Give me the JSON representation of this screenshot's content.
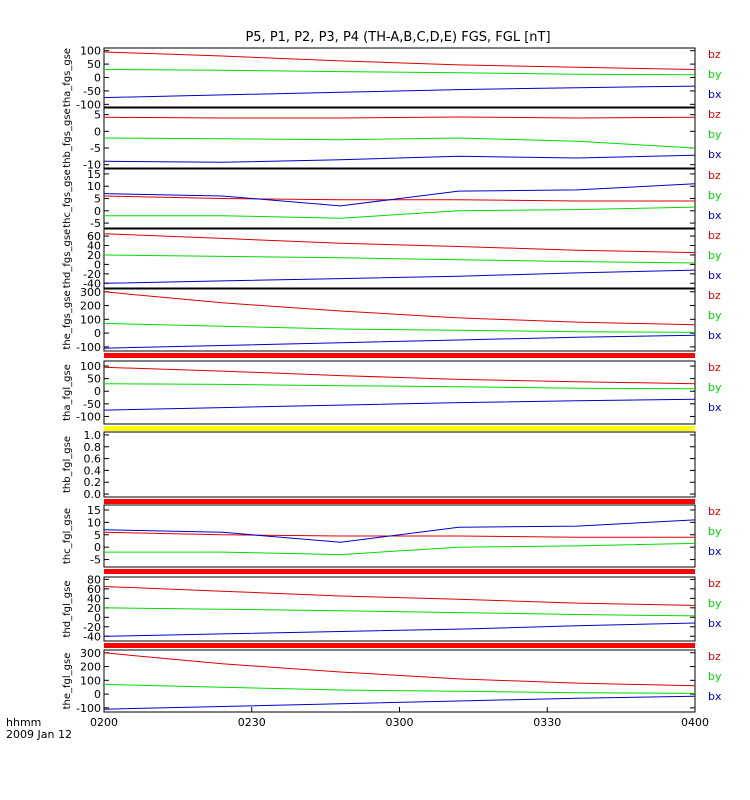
{
  "title": "P5, P1, P2, P3, P4 (TH-A,B,C,D,E) FGS, FGL [nT]",
  "footer": {
    "time_label": "hhmm",
    "date_label": "2009 Jan 12"
  },
  "colors": {
    "bz": "#e00000",
    "by": "#00dd00",
    "bx": "#0000cc",
    "bar_red": "#ff0000",
    "bar_yellow": "#ffff00",
    "axis": "#000000"
  },
  "chart_data": {
    "type": "line",
    "x_axis": {
      "ticks": [
        "0200",
        "0230",
        "0300",
        "0330",
        "0400"
      ]
    },
    "panels": [
      {
        "ylabel": "tha_fgs_gse",
        "ylim": [
          -110,
          110
        ],
        "yticks": [
          "100",
          "50",
          "0",
          "-50",
          "-100"
        ],
        "bar": null,
        "series": [
          {
            "name": "bz",
            "values": [
              95,
              80,
              62,
              47,
              38,
              30
            ]
          },
          {
            "name": "by",
            "values": [
              30,
              27,
              22,
              18,
              12,
              10
            ]
          },
          {
            "name": "bx",
            "values": [
              -75,
              -65,
              -55,
              -45,
              -38,
              -32
            ]
          }
        ]
      },
      {
        "ylabel": "thb_fgs_gse",
        "ylim": [
          -11,
          7
        ],
        "yticks": [
          "5",
          "0",
          "-5",
          "-10"
        ],
        "bar": null,
        "series": [
          {
            "name": "bz",
            "values": [
              4.2,
              4.0,
              4.0,
              4.3,
              4.0,
              4.2
            ]
          },
          {
            "name": "by",
            "values": [
              -2.0,
              -2.2,
              -2.5,
              -2.0,
              -3.0,
              -5.0
            ]
          },
          {
            "name": "bx",
            "values": [
              -9.0,
              -9.3,
              -8.5,
              -7.5,
              -8.0,
              -7.2
            ]
          }
        ]
      },
      {
        "ylabel": "thc_fgs_gse",
        "ylim": [
          -7,
          17
        ],
        "yticks": [
          "15",
          "10",
          "5",
          "0",
          "-5"
        ],
        "bar": null,
        "series": [
          {
            "name": "bz",
            "values": [
              6,
              5,
              4.5,
              4.5,
              4,
              4
            ]
          },
          {
            "name": "by",
            "values": [
              -2,
              -2,
              -3,
              0,
              0.5,
              1.5
            ]
          },
          {
            "name": "bx",
            "values": [
              7,
              6,
              2,
              8,
              8.5,
              11
            ]
          }
        ]
      },
      {
        "ylabel": "thd_fgs_gse",
        "ylim": [
          -50,
          75
        ],
        "yticks": [
          "60",
          "40",
          "20",
          "0",
          "-20",
          "-40"
        ],
        "bar": null,
        "series": [
          {
            "name": "bz",
            "values": [
              65,
              55,
              45,
              38,
              30,
              25
            ]
          },
          {
            "name": "by",
            "values": [
              20,
              17,
              14,
              10,
              6,
              3
            ]
          },
          {
            "name": "bx",
            "values": [
              -40,
              -35,
              -30,
              -25,
              -18,
              -12
            ]
          }
        ]
      },
      {
        "ylabel": "the_fgs_gse",
        "ylim": [
          -130,
          320
        ],
        "yticks": [
          "300",
          "200",
          "100",
          "0",
          "-100"
        ],
        "bar": "red",
        "series": [
          {
            "name": "bz",
            "values": [
              300,
              220,
              160,
              110,
              80,
              60
            ]
          },
          {
            "name": "by",
            "values": [
              70,
              50,
              30,
              20,
              10,
              5
            ]
          },
          {
            "name": "bx",
            "values": [
              -110,
              -90,
              -70,
              -50,
              -30,
              -15
            ]
          }
        ]
      },
      {
        "ylabel": "tha_fgl_gse",
        "ylim": [
          -130,
          120
        ],
        "yticks": [
          "100",
          "50",
          "0",
          "-50",
          "-100"
        ],
        "bar": "yellow",
        "series": [
          {
            "name": "bz",
            "values": [
              95,
              80,
              62,
              47,
              38,
              30
            ]
          },
          {
            "name": "by",
            "values": [
              30,
              27,
              22,
              18,
              12,
              10
            ]
          },
          {
            "name": "bx",
            "values": [
              -75,
              -65,
              -55,
              -45,
              -38,
              -32
            ]
          }
        ]
      },
      {
        "ylabel": "thb_fgl_gse",
        "ylim": [
          -0.05,
          1.05
        ],
        "yticks": [
          "1.0",
          "0.8",
          "0.6",
          "0.4",
          "0.2",
          "0.0"
        ],
        "bar": "red",
        "series": []
      },
      {
        "ylabel": "thc_fgl_gse",
        "ylim": [
          -8,
          17
        ],
        "yticks": [
          "15",
          "10",
          "5",
          "0",
          "-5"
        ],
        "bar": "red",
        "series": [
          {
            "name": "bz",
            "values": [
              6,
              5,
              4.5,
              4.5,
              4,
              4
            ]
          },
          {
            "name": "by",
            "values": [
              -2,
              -2,
              -3,
              0,
              0.5,
              1.5
            ]
          },
          {
            "name": "bx",
            "values": [
              7,
              6,
              2,
              8,
              8.5,
              11
            ]
          }
        ]
      },
      {
        "ylabel": "thd_fgl_gse",
        "ylim": [
          -50,
          85
        ],
        "yticks": [
          "80",
          "60",
          "40",
          "20",
          "0",
          "-20",
          "-40"
        ],
        "bar": "red",
        "series": [
          {
            "name": "bz",
            "values": [
              65,
              55,
              45,
              38,
              30,
              25
            ]
          },
          {
            "name": "by",
            "values": [
              20,
              17,
              14,
              10,
              6,
              3
            ]
          },
          {
            "name": "bx",
            "values": [
              -40,
              -35,
              -30,
              -25,
              -18,
              -12
            ]
          }
        ]
      },
      {
        "ylabel": "the_fgl_gse",
        "ylim": [
          -130,
          320
        ],
        "yticks": [
          "300",
          "200",
          "100",
          "0",
          "-100"
        ],
        "bar": null,
        "series": [
          {
            "name": "bz",
            "values": [
              300,
              220,
              160,
              110,
              80,
              60
            ]
          },
          {
            "name": "by",
            "values": [
              70,
              50,
              30,
              20,
              10,
              5
            ]
          },
          {
            "name": "bx",
            "values": [
              -110,
              -90,
              -70,
              -50,
              -30,
              -15
            ]
          }
        ]
      }
    ]
  }
}
